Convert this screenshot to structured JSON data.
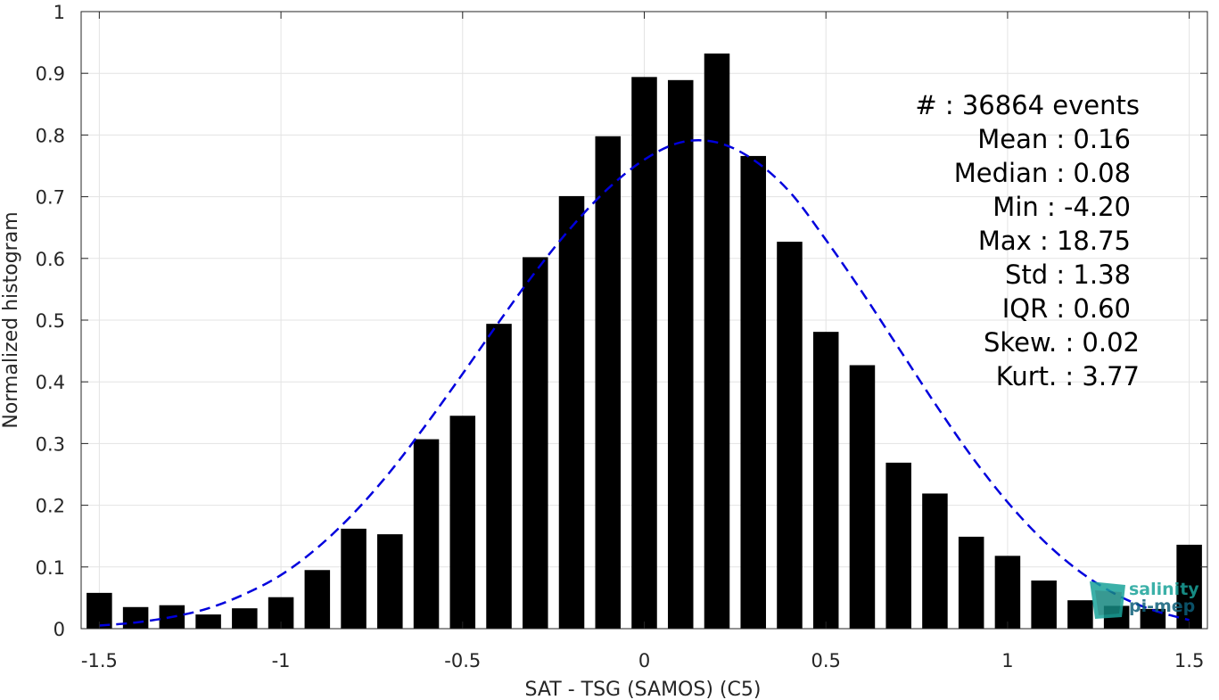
{
  "chart_data": {
    "type": "bar",
    "xlabel": "SAT - TSG (SAMOS) (C5)",
    "ylabel": "Normalized histogram",
    "xlim": [
      -1.55,
      1.55
    ],
    "ylim": [
      0,
      1
    ],
    "xticks": [
      -1.5,
      -1,
      -0.5,
      0,
      0.5,
      1,
      1.5
    ],
    "xtick_labels": [
      "-1.5",
      "-1",
      "-0.5",
      "0",
      "0.5",
      "1",
      "1.5"
    ],
    "yticks": [
      0,
      0.1,
      0.2,
      0.3,
      0.4,
      0.5,
      0.6,
      0.7,
      0.8,
      0.9,
      1
    ],
    "ytick_labels": [
      "0",
      "0.1",
      "0.2",
      "0.3",
      "0.4",
      "0.5",
      "0.6",
      "0.7",
      "0.8",
      "0.9",
      "1"
    ],
    "grid": true,
    "bar_color": "#000000",
    "bin_width": 0.1,
    "bars": {
      "x": [
        -1.5,
        -1.4,
        -1.3,
        -1.2,
        -1.1,
        -1.0,
        -0.9,
        -0.8,
        -0.7,
        -0.6,
        -0.5,
        -0.4,
        -0.3,
        -0.2,
        -0.1,
        0.0,
        0.1,
        0.2,
        0.3,
        0.4,
        0.5,
        0.6,
        0.7,
        0.8,
        0.9,
        1.0,
        1.1,
        1.2,
        1.3,
        1.4,
        1.5
      ],
      "values": [
        0.058,
        0.035,
        0.038,
        0.023,
        0.033,
        0.051,
        0.095,
        0.162,
        0.153,
        0.307,
        0.345,
        0.494,
        0.602,
        0.701,
        0.798,
        0.894,
        0.889,
        0.932,
        0.766,
        0.627,
        0.481,
        0.427,
        0.269,
        0.219,
        0.149,
        0.118,
        0.078,
        0.046,
        0.037,
        0.032,
        0.136
      ]
    },
    "fit": {
      "style": "dashed",
      "color": "#0000dd",
      "x": [
        -1.5,
        -1.4,
        -1.3,
        -1.2,
        -1.1,
        -1.0,
        -0.9,
        -0.8,
        -0.7,
        -0.6,
        -0.5,
        -0.4,
        -0.3,
        -0.2,
        -0.1,
        0.0,
        0.1,
        0.2,
        0.3,
        0.4,
        0.5,
        0.6,
        0.7,
        0.8,
        0.9,
        1.0,
        1.1,
        1.2,
        1.3,
        1.4,
        1.5
      ],
      "values": [
        0.005,
        0.01,
        0.019,
        0.033,
        0.056,
        0.087,
        0.131,
        0.187,
        0.254,
        0.331,
        0.413,
        0.497,
        0.578,
        0.651,
        0.713,
        0.76,
        0.788,
        0.788,
        0.76,
        0.708,
        0.63,
        0.545,
        0.455,
        0.365,
        0.28,
        0.205,
        0.142,
        0.092,
        0.055,
        0.03,
        0.014
      ]
    }
  },
  "stats": [
    {
      "label": "#  : 36864 events"
    },
    {
      "label": "Mean : 0.16"
    },
    {
      "label": "Median : 0.08"
    },
    {
      "label": "Min : -4.20"
    },
    {
      "label": "Max : 18.75"
    },
    {
      "label": "Std : 1.38"
    },
    {
      "label": "IQR : 0.60"
    },
    {
      "label": "Skew. : 0.02"
    },
    {
      "label": "Kurt. : 3.77"
    }
  ],
  "logo": {
    "line1": "salinity",
    "line2": "pi-mep",
    "color_primary": "#1aa39a",
    "color_secondary": "#0e5f7a"
  }
}
